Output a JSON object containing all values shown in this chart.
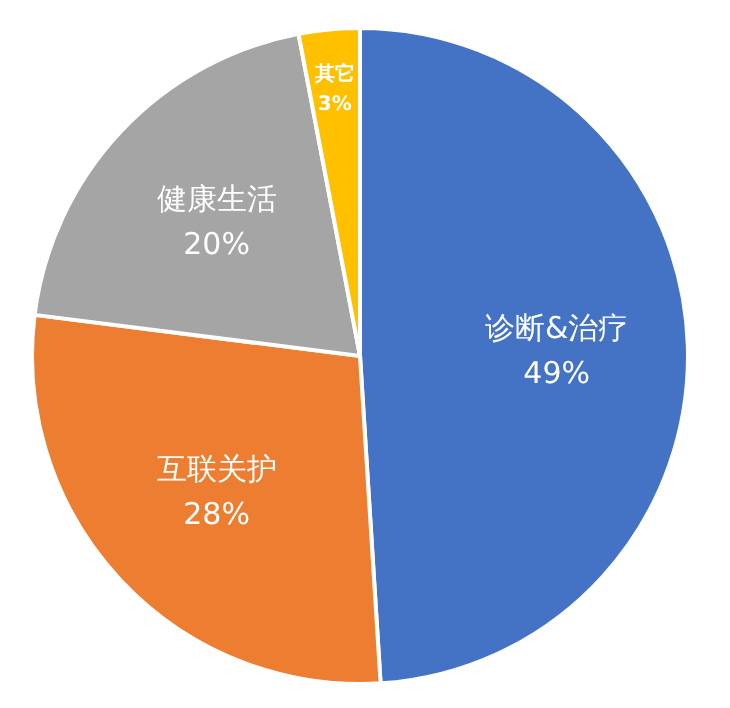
{
  "chart_data": {
    "type": "pie",
    "categories": [
      "诊断&治疗",
      "互联关护",
      "健康生活",
      "其它"
    ],
    "values": [
      49,
      28,
      20,
      3
    ],
    "colors": [
      "#4472c4",
      "#ed7d31",
      "#a5a5a5",
      "#ffc000"
    ],
    "value_labels": [
      "49%",
      "28%",
      "20%",
      "3%"
    ]
  }
}
